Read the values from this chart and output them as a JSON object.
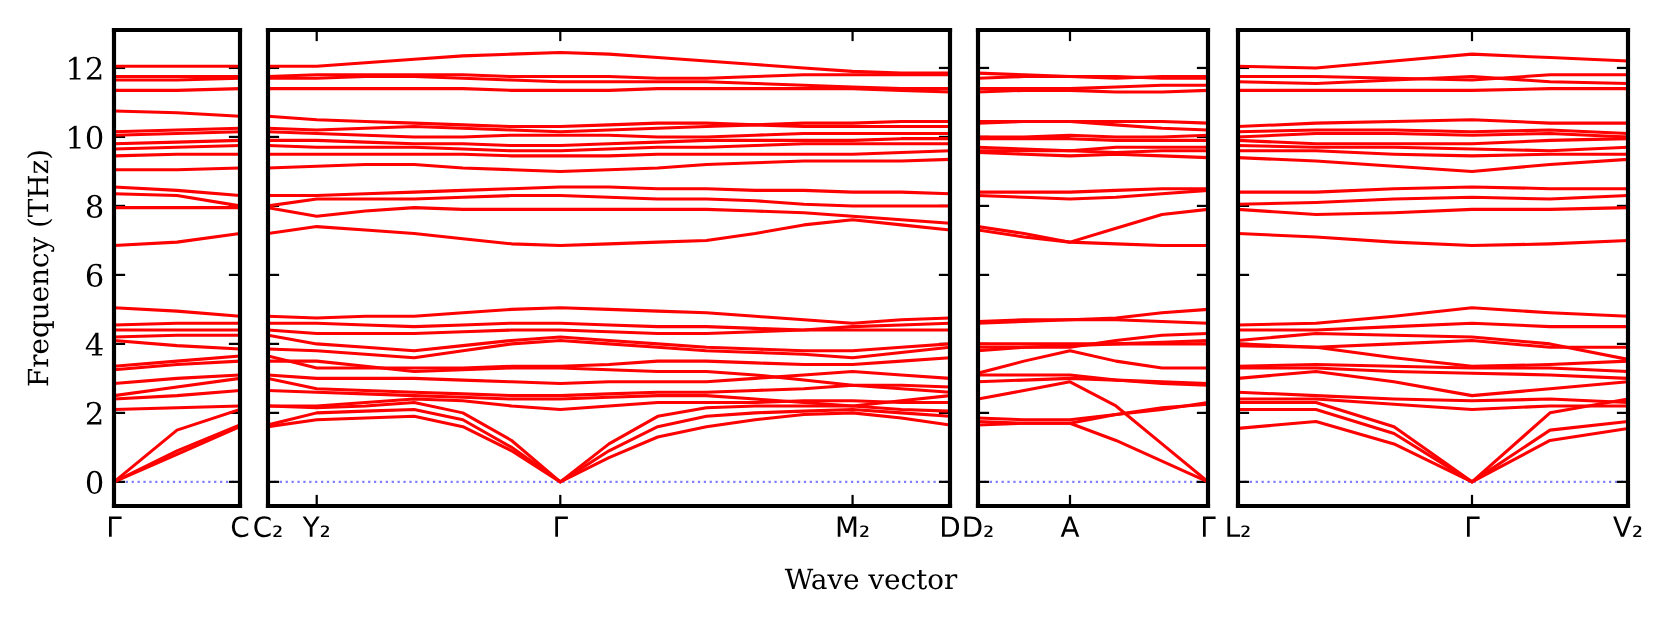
{
  "chart_data": [
    {
      "type": "line",
      "ylabel": "Frequency (THz)",
      "categories": [
        "Γ",
        null,
        "C"
      ],
      "ylim": [
        -0.7,
        13.1
      ],
      "yticks": [
        0,
        2,
        4,
        6,
        8,
        10,
        12
      ],
      "grid": false,
      "legend": false,
      "line_style": "solid",
      "ref_lines": [
        {
          "axis": "y",
          "value": 0,
          "label": null,
          "color": "#7f7fff",
          "line_style": "dotted"
        }
      ],
      "series": [
        {
          "color": "#ff0000",
          "values": [
            0,
            0.8,
            1.6
          ]
        },
        {
          "color": "#ff0000",
          "values": [
            0,
            0.9,
            1.65
          ]
        },
        {
          "color": "#ff0000",
          "values": [
            0,
            1.5,
            2.1
          ]
        },
        {
          "color": "#ff0000",
          "values": [
            2.1,
            2.15,
            2.2
          ]
        },
        {
          "color": "#ff0000",
          "values": [
            2.4,
            2.5,
            2.65
          ]
        },
        {
          "color": "#ff0000",
          "values": [
            2.5,
            2.75,
            3.0
          ]
        },
        {
          "color": "#ff0000",
          "values": [
            2.85,
            3.0,
            3.1
          ]
        },
        {
          "color": "#ff0000",
          "values": [
            3.25,
            3.4,
            3.5
          ]
        },
        {
          "color": "#ff0000",
          "values": [
            3.35,
            3.5,
            3.65
          ]
        },
        {
          "color": "#ff0000",
          "values": [
            4.1,
            3.95,
            3.85
          ]
        },
        {
          "color": "#ff0000",
          "values": [
            4.2,
            4.25,
            4.25
          ]
        },
        {
          "color": "#ff0000",
          "values": [
            4.4,
            4.4,
            4.4
          ]
        },
        {
          "color": "#ff0000",
          "values": [
            4.55,
            4.6,
            4.6
          ]
        },
        {
          "color": "#ff0000",
          "values": [
            5.05,
            4.95,
            4.8
          ]
        },
        {
          "color": "#ff0000",
          "values": [
            6.85,
            6.95,
            7.2
          ]
        },
        {
          "color": "#ff0000",
          "values": [
            7.95,
            7.95,
            7.95
          ]
        },
        {
          "color": "#ff0000",
          "values": [
            8.35,
            8.3,
            8.0
          ]
        },
        {
          "color": "#ff0000",
          "values": [
            8.55,
            8.45,
            8.3
          ]
        },
        {
          "color": "#ff0000",
          "values": [
            9.05,
            9.05,
            9.1
          ]
        },
        {
          "color": "#ff0000",
          "values": [
            9.45,
            9.5,
            9.5
          ]
        },
        {
          "color": "#ff0000",
          "values": [
            9.65,
            9.7,
            9.75
          ]
        },
        {
          "color": "#ff0000",
          "values": [
            9.8,
            9.85,
            9.9
          ]
        },
        {
          "color": "#ff0000",
          "values": [
            10.05,
            10.1,
            10.15
          ]
        },
        {
          "color": "#ff0000",
          "values": [
            10.15,
            10.2,
            10.25
          ]
        },
        {
          "color": "#ff0000",
          "values": [
            10.75,
            10.7,
            10.6
          ]
        },
        {
          "color": "#ff0000",
          "values": [
            11.35,
            11.35,
            11.4
          ]
        },
        {
          "color": "#ff0000",
          "values": [
            11.65,
            11.65,
            11.7
          ]
        },
        {
          "color": "#ff0000",
          "values": [
            11.75,
            11.75,
            11.75
          ]
        },
        {
          "color": "#ff0000",
          "values": [
            12.05,
            12.05,
            12.05
          ]
        }
      ]
    },
    {
      "type": "line",
      "xlabel": "Wave vector",
      "categories": [
        "C₂",
        "Y₂",
        null,
        null,
        null,
        null,
        "Γ",
        null,
        null,
        null,
        null,
        null,
        "M₂",
        null,
        "D"
      ],
      "ylim": [
        -0.7,
        13.1
      ],
      "yticks": [
        0,
        2,
        4,
        6,
        8,
        10,
        12
      ],
      "tick_labels": "x",
      "grid": false,
      "legend": false,
      "line_style": "solid",
      "ref_lines": [
        {
          "axis": "y",
          "value": 0,
          "label": null,
          "color": "#7f7fff",
          "line_style": "dotted"
        }
      ],
      "series": [
        {
          "color": "#ff0000",
          "values": [
            1.6,
            1.8,
            1.85,
            1.9,
            1.6,
            0.9,
            0,
            0.7,
            1.3,
            1.6,
            1.8,
            1.95,
            2.0,
            1.85,
            1.65
          ]
        },
        {
          "color": "#ff0000",
          "values": [
            1.65,
            2.0,
            2.05,
            2.1,
            1.8,
            1.0,
            0,
            0.9,
            1.6,
            1.9,
            2.0,
            2.05,
            2.1,
            2.0,
            1.9
          ]
        },
        {
          "color": "#ff0000",
          "values": [
            2.2,
            2.15,
            2.2,
            2.3,
            2.0,
            1.2,
            0,
            1.1,
            1.9,
            2.15,
            2.2,
            2.2,
            2.2,
            2.1,
            2.05
          ]
        },
        {
          "color": "#ff0000",
          "values": [
            2.2,
            2.2,
            2.3,
            2.4,
            2.35,
            2.2,
            2.1,
            2.2,
            2.3,
            2.3,
            2.3,
            2.35,
            2.35,
            2.3,
            2.3
          ]
        },
        {
          "color": "#ff0000",
          "values": [
            2.65,
            2.6,
            2.55,
            2.5,
            2.45,
            2.4,
            2.4,
            2.45,
            2.5,
            2.5,
            2.4,
            2.3,
            2.2,
            2.35,
            2.5
          ]
        },
        {
          "color": "#ff0000",
          "values": [
            3.0,
            2.7,
            2.65,
            2.6,
            2.55,
            2.5,
            2.5,
            2.55,
            2.6,
            2.6,
            2.65,
            2.7,
            2.8,
            2.8,
            2.75
          ]
        },
        {
          "color": "#ff0000",
          "values": [
            3.1,
            3.0,
            3.0,
            3.0,
            2.95,
            2.9,
            2.85,
            2.9,
            2.9,
            2.9,
            3.0,
            3.1,
            3.2,
            3.1,
            3.0
          ]
        },
        {
          "color": "#ff0000",
          "values": [
            3.5,
            3.5,
            3.35,
            3.2,
            3.25,
            3.3,
            3.3,
            3.25,
            3.2,
            3.2,
            3.1,
            2.95,
            2.8,
            2.7,
            2.6
          ]
        },
        {
          "color": "#ff0000",
          "values": [
            3.65,
            3.3,
            3.3,
            3.3,
            3.3,
            3.35,
            3.35,
            3.4,
            3.5,
            3.5,
            3.45,
            3.4,
            3.4,
            3.5,
            3.6
          ]
        },
        {
          "color": "#ff0000",
          "values": [
            3.85,
            3.8,
            3.7,
            3.6,
            3.8,
            4.0,
            4.1,
            4.0,
            3.9,
            3.8,
            3.75,
            3.7,
            3.6,
            3.75,
            3.9
          ]
        },
        {
          "color": "#ff0000",
          "values": [
            4.25,
            4.0,
            3.9,
            3.8,
            3.95,
            4.1,
            4.2,
            4.1,
            4.0,
            3.9,
            3.85,
            3.8,
            3.8,
            3.9,
            4.0
          ]
        },
        {
          "color": "#ff0000",
          "values": [
            4.4,
            4.3,
            4.3,
            4.3,
            4.35,
            4.4,
            4.4,
            4.35,
            4.3,
            4.3,
            4.35,
            4.4,
            4.5,
            4.55,
            4.6
          ]
        },
        {
          "color": "#ff0000",
          "values": [
            4.6,
            4.6,
            4.55,
            4.5,
            4.55,
            4.6,
            4.6,
            4.55,
            4.5,
            4.5,
            4.45,
            4.4,
            4.4,
            4.4,
            4.4
          ]
        },
        {
          "color": "#ff0000",
          "values": [
            4.8,
            4.75,
            4.8,
            4.8,
            4.9,
            5.0,
            5.05,
            5.0,
            4.95,
            4.9,
            4.8,
            4.7,
            4.6,
            4.7,
            4.75
          ]
        },
        {
          "color": "#ff0000",
          "values": [
            7.2,
            7.4,
            7.3,
            7.2,
            7.05,
            6.9,
            6.85,
            6.9,
            6.95,
            7.0,
            7.2,
            7.45,
            7.6,
            7.45,
            7.3
          ]
        },
        {
          "color": "#ff0000",
          "values": [
            7.95,
            7.7,
            7.85,
            7.95,
            7.9,
            7.9,
            7.9,
            7.9,
            7.9,
            7.9,
            7.85,
            7.8,
            7.7,
            7.6,
            7.5
          ]
        },
        {
          "color": "#ff0000",
          "values": [
            8.0,
            8.2,
            8.2,
            8.2,
            8.25,
            8.3,
            8.3,
            8.25,
            8.2,
            8.2,
            8.15,
            8.05,
            8.0,
            8.0,
            8.0
          ]
        },
        {
          "color": "#ff0000",
          "values": [
            8.3,
            8.3,
            8.35,
            8.4,
            8.45,
            8.5,
            8.55,
            8.55,
            8.5,
            8.5,
            8.45,
            8.45,
            8.4,
            8.4,
            8.35
          ]
        },
        {
          "color": "#ff0000",
          "values": [
            9.1,
            9.15,
            9.2,
            9.2,
            9.1,
            9.05,
            9.0,
            9.05,
            9.1,
            9.2,
            9.25,
            9.3,
            9.3,
            9.3,
            9.35
          ]
        },
        {
          "color": "#ff0000",
          "values": [
            9.5,
            9.5,
            9.5,
            9.5,
            9.5,
            9.45,
            9.45,
            9.45,
            9.5,
            9.5,
            9.5,
            9.5,
            9.5,
            9.55,
            9.6
          ]
        },
        {
          "color": "#ff0000",
          "values": [
            9.75,
            9.7,
            9.7,
            9.7,
            9.65,
            9.6,
            9.6,
            9.65,
            9.7,
            9.7,
            9.75,
            9.8,
            9.8,
            9.8,
            9.8
          ]
        },
        {
          "color": "#ff0000",
          "values": [
            9.9,
            9.9,
            9.85,
            9.8,
            9.8,
            9.75,
            9.75,
            9.8,
            9.85,
            9.9,
            9.9,
            9.9,
            9.9,
            9.95,
            9.95
          ]
        },
        {
          "color": "#ff0000",
          "values": [
            10.15,
            10.1,
            10.05,
            10.0,
            10.0,
            10.05,
            10.05,
            10.05,
            10.0,
            10.0,
            10.05,
            10.1,
            10.1,
            10.1,
            10.1
          ]
        },
        {
          "color": "#ff0000",
          "values": [
            10.25,
            10.2,
            10.25,
            10.3,
            10.25,
            10.2,
            10.15,
            10.2,
            10.25,
            10.3,
            10.35,
            10.4,
            10.4,
            10.45,
            10.45
          ]
        },
        {
          "color": "#ff0000",
          "values": [
            10.6,
            10.5,
            10.45,
            10.4,
            10.35,
            10.3,
            10.3,
            10.35,
            10.4,
            10.4,
            10.35,
            10.3,
            10.3,
            10.3,
            10.3
          ]
        },
        {
          "color": "#ff0000",
          "values": [
            11.4,
            11.4,
            11.4,
            11.4,
            11.4,
            11.35,
            11.35,
            11.35,
            11.4,
            11.4,
            11.4,
            11.4,
            11.4,
            11.35,
            11.3
          ]
        },
        {
          "color": "#ff0000",
          "values": [
            11.7,
            11.7,
            11.75,
            11.75,
            11.7,
            11.65,
            11.6,
            11.6,
            11.6,
            11.6,
            11.55,
            11.5,
            11.45,
            11.4,
            11.4
          ]
        },
        {
          "color": "#ff0000",
          "values": [
            11.75,
            11.8,
            11.8,
            11.8,
            11.8,
            11.75,
            11.75,
            11.75,
            11.7,
            11.7,
            11.75,
            11.8,
            11.8,
            11.8,
            11.8
          ]
        },
        {
          "color": "#ff0000",
          "values": [
            12.05,
            12.05,
            12.15,
            12.25,
            12.35,
            12.4,
            12.45,
            12.4,
            12.3,
            12.2,
            12.1,
            12.0,
            11.9,
            11.85,
            11.85
          ]
        }
      ]
    },
    {
      "type": "line",
      "categories": [
        "D₂",
        null,
        "A",
        null,
        null,
        "Γ"
      ],
      "ylim": [
        -0.7,
        13.1
      ],
      "yticks": [
        0,
        2,
        4,
        6,
        8,
        10,
        12
      ],
      "tick_labels": "x",
      "grid": false,
      "legend": false,
      "line_style": "solid",
      "ref_lines": [
        {
          "axis": "y",
          "value": 0,
          "label": null,
          "color": "#7f7fff",
          "line_style": "dotted"
        }
      ],
      "series": [
        {
          "color": "#ff0000",
          "values": [
            1.65,
            1.7,
            1.7,
            1.2,
            0.6,
            0
          ]
        },
        {
          "color": "#ff0000",
          "values": [
            1.85,
            1.8,
            1.8,
            1.95,
            2.1,
            2.3
          ]
        },
        {
          "color": "#ff0000",
          "values": [
            2.4,
            2.65,
            2.9,
            2.2,
            1.1,
            0
          ]
        },
        {
          "color": "#ff0000",
          "values": [
            1.75,
            1.7,
            1.7,
            1.95,
            2.15,
            2.25
          ]
        },
        {
          "color": "#ff0000",
          "values": [
            2.9,
            2.95,
            3.0,
            2.95,
            2.85,
            2.8
          ]
        },
        {
          "color": "#ff0000",
          "values": [
            3.1,
            3.1,
            3.1,
            2.95,
            2.9,
            2.85
          ]
        },
        {
          "color": "#ff0000",
          "values": [
            3.15,
            3.5,
            3.8,
            3.5,
            3.3,
            3.3
          ]
        },
        {
          "color": "#ff0000",
          "values": [
            3.8,
            3.9,
            3.95,
            4.0,
            4.0,
            4.0
          ]
        },
        {
          "color": "#ff0000",
          "values": [
            3.9,
            3.9,
            3.9,
            4.1,
            4.25,
            4.3
          ]
        },
        {
          "color": "#ff0000",
          "values": [
            4.0,
            4.0,
            4.0,
            4.0,
            4.05,
            4.1
          ]
        },
        {
          "color": "#ff0000",
          "values": [
            4.6,
            4.65,
            4.7,
            4.7,
            4.65,
            4.6
          ]
        },
        {
          "color": "#ff0000",
          "values": [
            4.65,
            4.7,
            4.7,
            4.75,
            4.9,
            5.0
          ]
        },
        {
          "color": "#ff0000",
          "values": [
            7.4,
            7.2,
            6.95,
            7.35,
            7.75,
            7.9
          ]
        },
        {
          "color": "#ff0000",
          "values": [
            7.3,
            7.1,
            6.95,
            6.9,
            6.85,
            6.85
          ]
        },
        {
          "color": "#ff0000",
          "values": [
            8.3,
            8.25,
            8.2,
            8.25,
            8.35,
            8.45
          ]
        },
        {
          "color": "#ff0000",
          "values": [
            8.4,
            8.4,
            8.4,
            8.45,
            8.5,
            8.5
          ]
        },
        {
          "color": "#ff0000",
          "values": [
            9.55,
            9.5,
            9.45,
            9.5,
            9.45,
            9.4
          ]
        },
        {
          "color": "#ff0000",
          "values": [
            9.6,
            9.6,
            9.6,
            9.55,
            9.6,
            9.6
          ]
        },
        {
          "color": "#ff0000",
          "values": [
            9.7,
            9.65,
            9.6,
            9.7,
            9.7,
            9.7
          ]
        },
        {
          "color": "#ff0000",
          "values": [
            9.95,
            9.95,
            9.95,
            9.9,
            9.9,
            9.9
          ]
        },
        {
          "color": "#ff0000",
          "values": [
            10.0,
            10.0,
            10.05,
            10.0,
            10.0,
            10.05
          ]
        },
        {
          "color": "#ff0000",
          "values": [
            10.4,
            10.45,
            10.45,
            10.35,
            10.25,
            10.2
          ]
        },
        {
          "color": "#ff0000",
          "values": [
            10.45,
            10.45,
            10.45,
            10.45,
            10.45,
            10.4
          ]
        },
        {
          "color": "#ff0000",
          "values": [
            11.3,
            11.35,
            11.35,
            11.3,
            11.3,
            11.35
          ]
        },
        {
          "color": "#ff0000",
          "values": [
            11.4,
            11.4,
            11.4,
            11.45,
            11.5,
            11.5
          ]
        },
        {
          "color": "#ff0000",
          "values": [
            11.7,
            11.75,
            11.75,
            11.7,
            11.75,
            11.75
          ]
        },
        {
          "color": "#ff0000",
          "values": [
            11.85,
            11.8,
            11.75,
            11.75,
            11.7,
            11.7
          ]
        }
      ]
    },
    {
      "type": "line",
      "categories": [
        "L₂",
        null,
        null,
        "Γ",
        null,
        "V₂"
      ],
      "ylim": [
        -0.7,
        13.1
      ],
      "yticks": [
        0,
        2,
        4,
        6,
        8,
        10,
        12
      ],
      "tick_labels": "x",
      "grid": false,
      "legend": false,
      "line_style": "solid",
      "ref_lines": [
        {
          "axis": "y",
          "value": 0,
          "label": null,
          "color": "#7f7fff",
          "line_style": "dotted"
        }
      ],
      "series": [
        {
          "color": "#ff0000",
          "values": [
            1.55,
            1.75,
            1.1,
            0,
            1.2,
            1.55
          ]
        },
        {
          "color": "#ff0000",
          "values": [
            2.1,
            2.1,
            1.4,
            0,
            1.5,
            1.75
          ]
        },
        {
          "color": "#ff0000",
          "values": [
            2.3,
            2.3,
            1.6,
            0,
            2.0,
            2.4
          ]
        },
        {
          "color": "#ff0000",
          "values": [
            2.4,
            2.4,
            2.25,
            2.1,
            2.2,
            2.2
          ]
        },
        {
          "color": "#ff0000",
          "values": [
            2.6,
            2.5,
            2.4,
            2.35,
            2.4,
            2.3
          ]
        },
        {
          "color": "#ff0000",
          "values": [
            3.0,
            3.2,
            2.9,
            2.5,
            2.7,
            2.9
          ]
        },
        {
          "color": "#ff0000",
          "values": [
            3.3,
            3.3,
            3.2,
            3.15,
            3.1,
            3.0
          ]
        },
        {
          "color": "#ff0000",
          "values": [
            3.35,
            3.4,
            3.35,
            3.3,
            3.3,
            3.2
          ]
        },
        {
          "color": "#ff0000",
          "values": [
            3.95,
            3.9,
            3.6,
            3.35,
            3.4,
            3.5
          ]
        },
        {
          "color": "#ff0000",
          "values": [
            4.0,
            3.9,
            4.0,
            4.1,
            3.9,
            3.9
          ]
        },
        {
          "color": "#ff0000",
          "values": [
            4.1,
            4.3,
            4.25,
            4.2,
            4.0,
            3.55
          ]
        },
        {
          "color": "#ff0000",
          "values": [
            4.4,
            4.4,
            4.5,
            4.6,
            4.5,
            4.5
          ]
        },
        {
          "color": "#ff0000",
          "values": [
            4.55,
            4.6,
            4.8,
            5.05,
            4.9,
            4.8
          ]
        },
        {
          "color": "#ff0000",
          "values": [
            7.2,
            7.1,
            6.95,
            6.85,
            6.9,
            7.0
          ]
        },
        {
          "color": "#ff0000",
          "values": [
            7.9,
            7.75,
            7.8,
            7.9,
            7.9,
            7.95
          ]
        },
        {
          "color": "#ff0000",
          "values": [
            8.05,
            8.1,
            8.2,
            8.25,
            8.2,
            8.3
          ]
        },
        {
          "color": "#ff0000",
          "values": [
            8.4,
            8.4,
            8.5,
            8.55,
            8.5,
            8.5
          ]
        },
        {
          "color": "#ff0000",
          "values": [
            9.4,
            9.3,
            9.15,
            9.0,
            9.2,
            9.35
          ]
        },
        {
          "color": "#ff0000",
          "values": [
            9.6,
            9.6,
            9.5,
            9.45,
            9.5,
            9.5
          ]
        },
        {
          "color": "#ff0000",
          "values": [
            9.75,
            9.7,
            9.7,
            9.65,
            9.6,
            9.7
          ]
        },
        {
          "color": "#ff0000",
          "values": [
            9.9,
            9.8,
            9.8,
            9.8,
            9.9,
            9.95
          ]
        },
        {
          "color": "#ff0000",
          "values": [
            10.0,
            10.1,
            10.1,
            10.05,
            10.1,
            10.0
          ]
        },
        {
          "color": "#ff0000",
          "values": [
            10.15,
            10.2,
            10.2,
            10.15,
            10.2,
            10.1
          ]
        },
        {
          "color": "#ff0000",
          "values": [
            10.3,
            10.4,
            10.45,
            10.5,
            10.4,
            10.4
          ]
        },
        {
          "color": "#ff0000",
          "values": [
            11.35,
            11.35,
            11.35,
            11.35,
            11.4,
            11.4
          ]
        },
        {
          "color": "#ff0000",
          "values": [
            11.6,
            11.55,
            11.65,
            11.75,
            11.6,
            11.55
          ]
        },
        {
          "color": "#ff0000",
          "values": [
            11.75,
            11.75,
            11.7,
            11.65,
            11.8,
            11.8
          ]
        },
        {
          "color": "#ff0000",
          "values": [
            12.05,
            12.0,
            12.2,
            12.4,
            12.3,
            12.2
          ]
        }
      ]
    }
  ]
}
